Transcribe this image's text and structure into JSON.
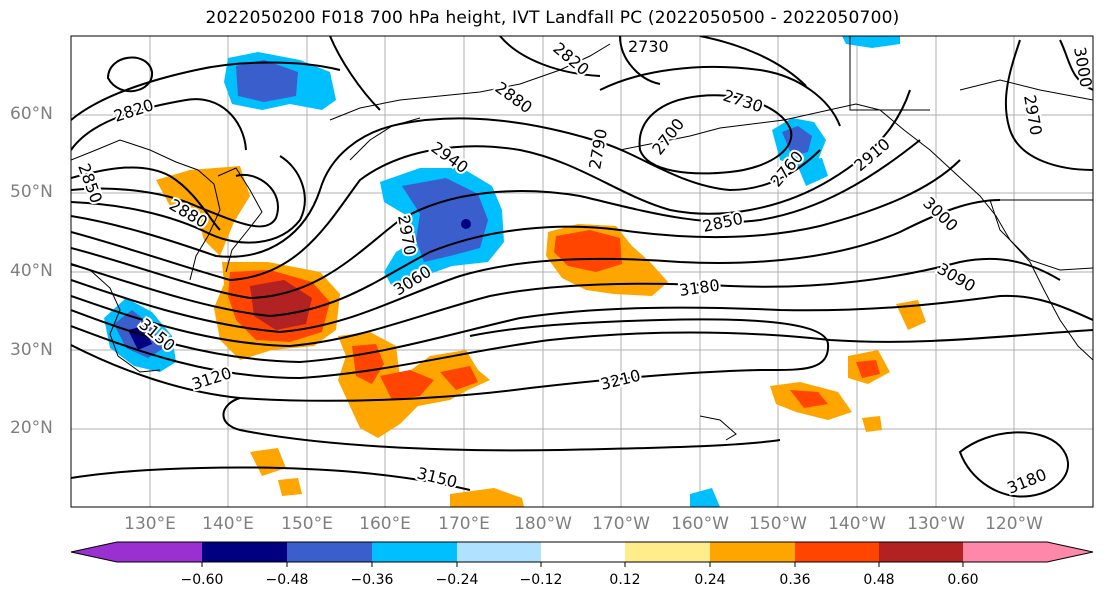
{
  "title": "2022050200 F018 700 hPa height, IVT Landfall PC (2022050500 - 2022050700)",
  "lat_labels": [
    "60°N",
    "50°N",
    "40°N",
    "30°N",
    "20°N"
  ],
  "lon_labels": [
    "130°E",
    "140°E",
    "150°E",
    "160°E",
    "170°E",
    "180°W",
    "170°W",
    "160°W",
    "150°W",
    "140°W",
    "130°W",
    "120°W"
  ],
  "colorbar": {
    "ticks": [
      "−0.60",
      "−0.48",
      "−0.36",
      "−0.24",
      "−0.12",
      "0.12",
      "0.24",
      "0.36",
      "0.48",
      "0.60"
    ],
    "colors": [
      "#9b30d0",
      "#000080",
      "#3a5fcd",
      "#00bfff",
      "#b0e2ff",
      "#ffffff",
      "#ffec8b",
      "#ffa500",
      "#ff4500",
      "#b22222",
      "#ff88aa"
    ]
  },
  "contour_labels": [
    {
      "text": "2820"
    },
    {
      "text": "2850"
    },
    {
      "text": "2880"
    },
    {
      "text": "2820"
    },
    {
      "text": "2730"
    },
    {
      "text": "2880"
    },
    {
      "text": "2790"
    },
    {
      "text": "2700"
    },
    {
      "text": "2730"
    },
    {
      "text": "2760"
    },
    {
      "text": "2940"
    },
    {
      "text": "2910"
    },
    {
      "text": "2850"
    },
    {
      "text": "2970"
    },
    {
      "text": "3000"
    },
    {
      "text": "3060"
    },
    {
      "text": "3180"
    },
    {
      "text": "3090"
    },
    {
      "text": "3120"
    },
    {
      "text": "3150"
    },
    {
      "text": "3210"
    },
    {
      "text": "3150"
    },
    {
      "text": "3180"
    },
    {
      "text": "2970"
    },
    {
      "text": "3000"
    }
  ]
}
